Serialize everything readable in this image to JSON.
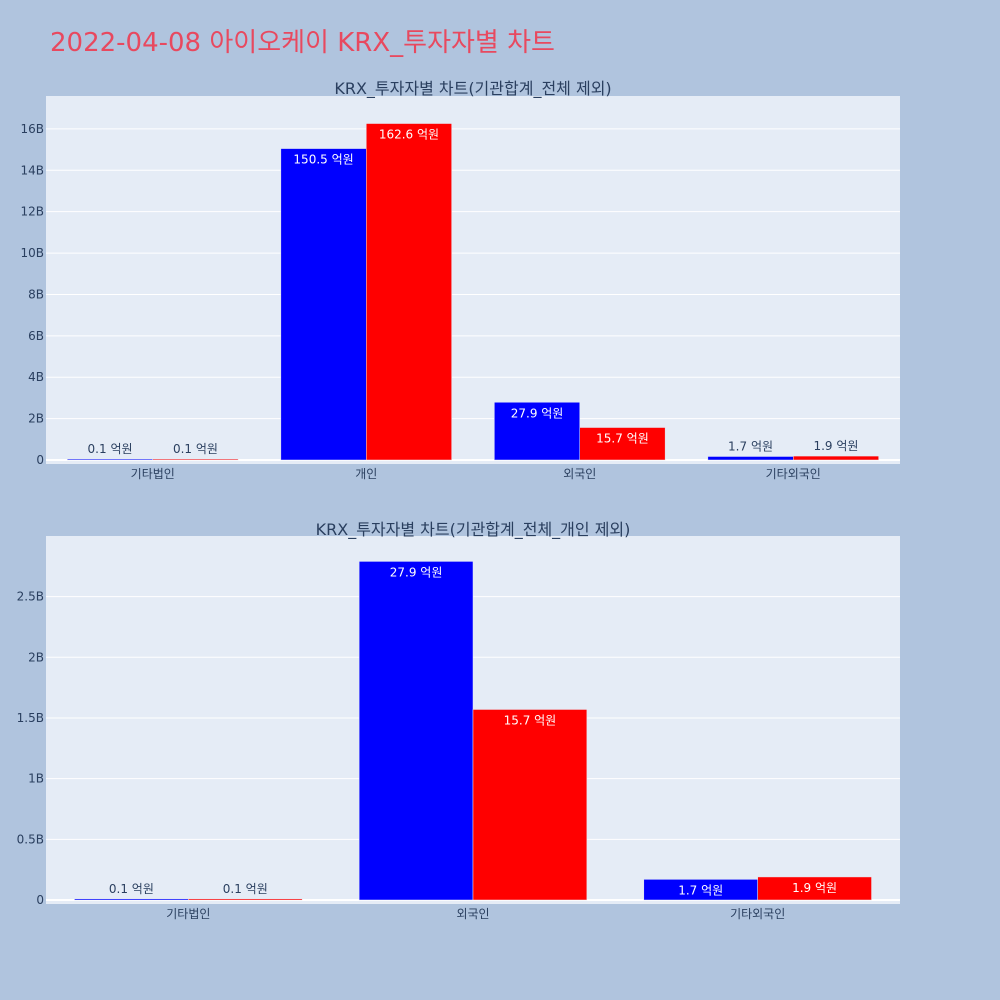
{
  "page": {
    "title": "2022-04-08 아이오케이 KRX_투자자별 차트"
  },
  "chart_data": [
    {
      "type": "bar",
      "title": "KRX_투자자별 차트(기관합계_전체 제외)",
      "categories": [
        "기타법인",
        "개인",
        "외국인",
        "기타외국인"
      ],
      "series": [
        {
          "color": "#0000ff",
          "values": [
            10000000,
            15050000000,
            2790000000,
            170000000
          ],
          "labels": [
            "0.1 억원",
            "150.5 억원",
            "27.9 억원",
            "1.7 억원"
          ]
        },
        {
          "color": "#ff0000",
          "values": [
            10000000,
            16260000000,
            1570000000,
            190000000
          ],
          "labels": [
            "0.1 억원",
            "162.6 억원",
            "15.7 억원",
            "1.9 억원"
          ]
        }
      ],
      "ylim": [
        0,
        17300000000
      ],
      "yticks": [
        0,
        2000000000,
        4000000000,
        6000000000,
        8000000000,
        10000000000,
        12000000000,
        14000000000,
        16000000000
      ],
      "ytick_labels": [
        "0",
        "2B",
        "4B",
        "6B",
        "8B",
        "10B",
        "12B",
        "14B",
        "16B"
      ],
      "grid": true
    },
    {
      "type": "bar",
      "title": "KRX_투자자별 차트(기관합계_전체_개인 제외)",
      "categories": [
        "기타법인",
        "외국인",
        "기타외국인"
      ],
      "series": [
        {
          "color": "#0000ff",
          "values": [
            10000000,
            2790000000,
            170000000
          ],
          "labels": [
            "0.1 억원",
            "27.9 억원",
            "1.7 억원"
          ]
        },
        {
          "color": "#ff0000",
          "values": [
            10000000,
            1570000000,
            190000000
          ],
          "labels": [
            "0.1 억원",
            "15.7 억원",
            "1.9 억원"
          ]
        }
      ],
      "ylim": [
        0,
        2950000000
      ],
      "yticks": [
        0,
        500000000,
        1000000000,
        1500000000,
        2000000000,
        2500000000
      ],
      "ytick_labels": [
        "0",
        "0.5B",
        "1B",
        "1.5B",
        "2B",
        "2.5B"
      ],
      "grid": true
    }
  ]
}
